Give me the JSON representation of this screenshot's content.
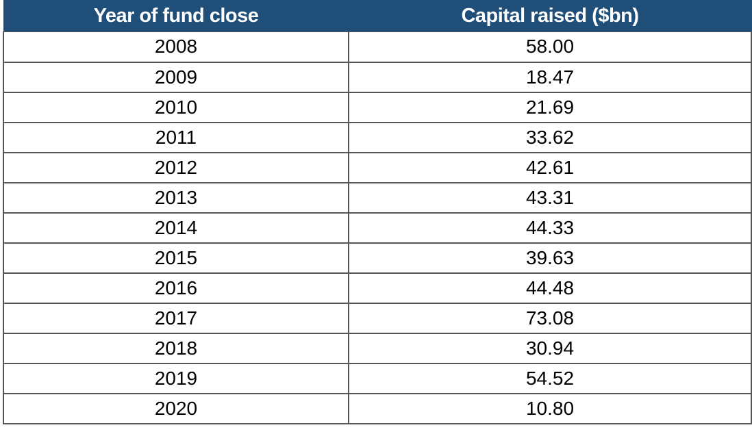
{
  "colors": {
    "header_background": "#1f4e79",
    "header_text": "#ffffff",
    "grid_lines": "#555555"
  },
  "table": {
    "headers": [
      "Year of fund close",
      "Capital raised ($bn)"
    ],
    "rows": [
      [
        "2008",
        "58.00"
      ],
      [
        "2009",
        "18.47"
      ],
      [
        "2010",
        "21.69"
      ],
      [
        "2011",
        "33.62"
      ],
      [
        "2012",
        "42.61"
      ],
      [
        "2013",
        "43.31"
      ],
      [
        "2014",
        "44.33"
      ],
      [
        "2015",
        "39.63"
      ],
      [
        "2016",
        "44.48"
      ],
      [
        "2017",
        "73.08"
      ],
      [
        "2018",
        "30.94"
      ],
      [
        "2019",
        "54.52"
      ],
      [
        "2020",
        "10.80"
      ]
    ]
  },
  "chart_data": {
    "type": "table",
    "columns": [
      "Year of fund close",
      "Capital raised ($bn)"
    ],
    "x": [
      2008,
      2009,
      2010,
      2011,
      2012,
      2013,
      2014,
      2015,
      2016,
      2017,
      2018,
      2019,
      2020
    ],
    "values": [
      58.0,
      18.47,
      21.69,
      33.62,
      42.61,
      43.31,
      44.33,
      39.63,
      44.48,
      73.08,
      30.94,
      54.52,
      10.8
    ]
  }
}
